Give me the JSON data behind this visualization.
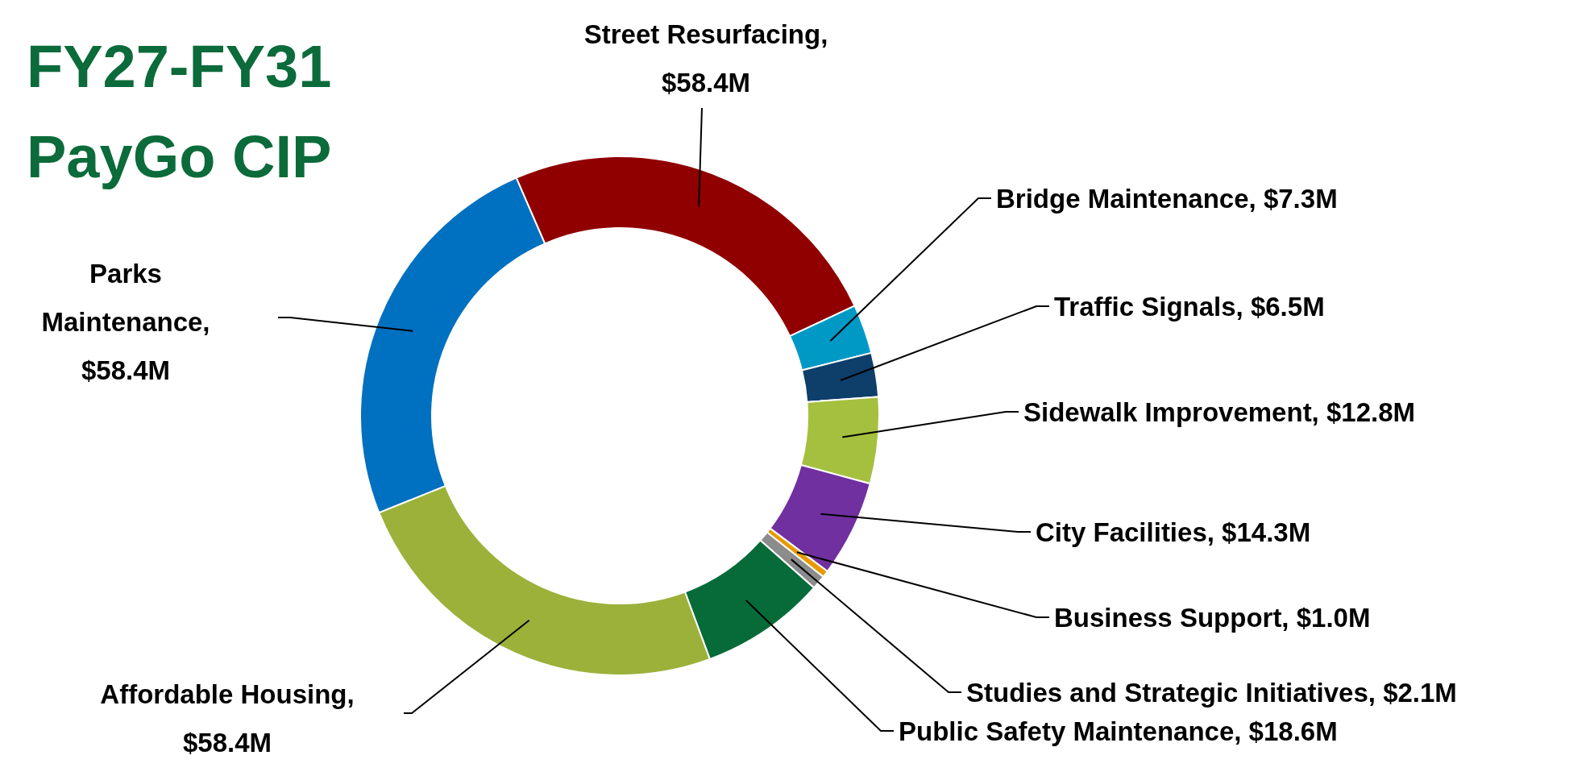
{
  "chart_data": {
    "type": "donut",
    "title": "FY27-FY31 PayGo CIP",
    "categories": [
      "Street Resurfacing, $58.4M",
      "Bridge Maintenance, $7.3M",
      "Traffic Signals, $6.5M",
      "Sidewalk Improvement, $12.8M",
      "City Facilities, $14.3M",
      "Business Support, $1.0M",
      "Studies and Strategic Initiatives, $2.1M",
      "Public Safety Maintenance, $18.6M",
      "Affordable Housing, $58.4M",
      "Parks Maintenance, $58.4M"
    ],
    "values": [
      58.4,
      7.3,
      6.5,
      12.8,
      14.3,
      1.0,
      2.1,
      18.6,
      58.4,
      58.4
    ],
    "colors": [
      "#900000",
      "#0099c6",
      "#0e3e6a",
      "#a5c03f",
      "#7030a0",
      "#e69a00",
      "#8c8c8c",
      "#066b38",
      "#9bb13a",
      "#0070c0"
    ]
  }
}
